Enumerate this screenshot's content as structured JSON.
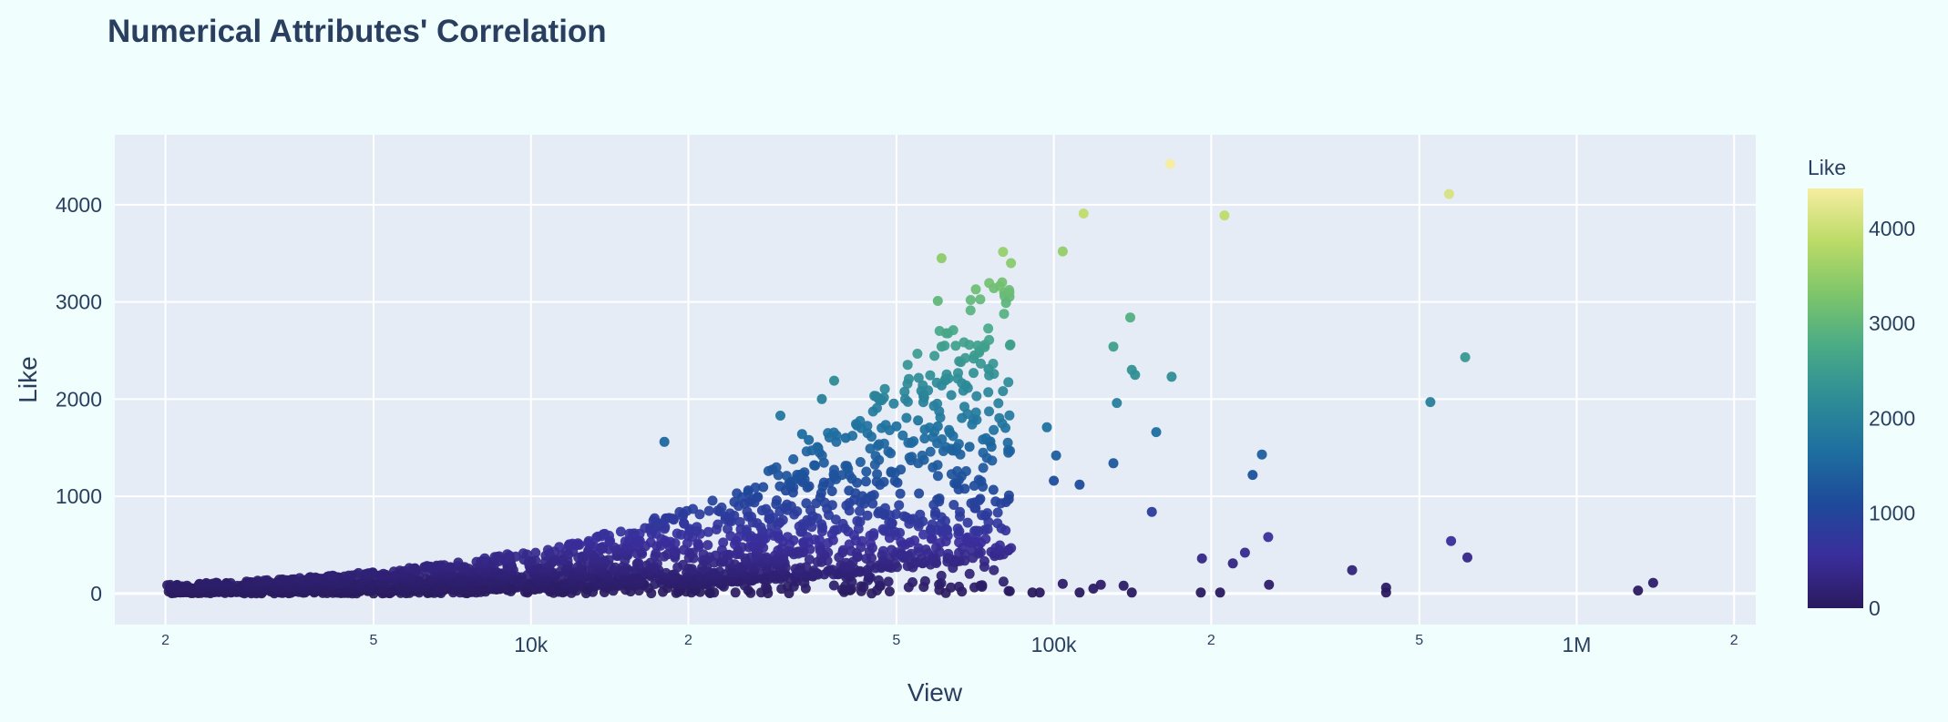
{
  "chart_data": {
    "type": "scatter",
    "title": "Numerical Attributes' Correlation",
    "xlabel": "View",
    "ylabel": "Like",
    "x_scale": "log",
    "xlim": [
      1600,
      2200000
    ],
    "ylim": [
      -320,
      4720
    ],
    "x_major_ticks": [
      {
        "value": 10000,
        "label": "10k"
      },
      {
        "value": 100000,
        "label": "100k"
      },
      {
        "value": 1000000,
        "label": "1M"
      }
    ],
    "x_minor_ticks": [
      {
        "value": 2000,
        "label": "2"
      },
      {
        "value": 5000,
        "label": "5"
      },
      {
        "value": 20000,
        "label": "2"
      },
      {
        "value": 50000,
        "label": "5"
      },
      {
        "value": 200000,
        "label": "2"
      },
      {
        "value": 500000,
        "label": "5"
      },
      {
        "value": 2000000,
        "label": "2"
      }
    ],
    "y_ticks": [
      {
        "value": 0,
        "label": "0"
      },
      {
        "value": 1000,
        "label": "1000"
      },
      {
        "value": 2000,
        "label": "2000"
      },
      {
        "value": 3000,
        "label": "3000"
      },
      {
        "value": 4000,
        "label": "4000"
      }
    ],
    "grid": true,
    "colorbar": {
      "title": "Like",
      "min": 0,
      "max": 4420,
      "colorscale": [
        "#2a1a5e",
        "#3a2e9c",
        "#1e4a9a",
        "#1e6fa0",
        "#2e8d96",
        "#4aab86",
        "#7ec66a",
        "#bcdb68",
        "#f6eda0"
      ],
      "ticks": [
        {
          "value": 0,
          "label": "0"
        },
        {
          "value": 1000,
          "label": "1000"
        },
        {
          "value": 2000,
          "label": "2000"
        },
        {
          "value": 3000,
          "label": "3000"
        },
        {
          "value": 4000,
          "label": "4000"
        }
      ]
    },
    "colors": {
      "page_background": "#f0fffe",
      "plot_background": "#e5ecf6",
      "grid": "#ffffff",
      "text": "#2a3f5f"
    },
    "notable_points": [
      [
        167000,
        4420
      ],
      [
        570000,
        4110
      ],
      [
        114000,
        3910
      ],
      [
        212000,
        3890
      ],
      [
        104000,
        3520
      ],
      [
        61000,
        3450
      ],
      [
        60000,
        3010
      ],
      [
        81000,
        2990
      ],
      [
        61000,
        2540
      ],
      [
        130000,
        2540
      ],
      [
        140000,
        2840
      ],
      [
        612000,
        2430
      ],
      [
        75000,
        2310
      ],
      [
        141000,
        2300
      ],
      [
        143000,
        2250
      ],
      [
        168000,
        2230
      ],
      [
        61000,
        2140
      ],
      [
        38000,
        2190
      ],
      [
        36000,
        2000
      ],
      [
        132000,
        1960
      ],
      [
        525000,
        1970
      ],
      [
        97000,
        1710
      ],
      [
        157000,
        1660
      ],
      [
        101000,
        1420
      ],
      [
        100000,
        1160
      ],
      [
        112000,
        1120
      ],
      [
        130000,
        1340
      ],
      [
        250000,
        1430
      ],
      [
        240000,
        1220
      ],
      [
        154000,
        840
      ],
      [
        64000,
        1470
      ],
      [
        69000,
        1510
      ],
      [
        76000,
        1510
      ],
      [
        60000,
        1720
      ],
      [
        55000,
        1780
      ],
      [
        50000,
        1720
      ],
      [
        30000,
        1830
      ],
      [
        18000,
        1560
      ],
      [
        33000,
        1640
      ],
      [
        34000,
        1580
      ],
      [
        40000,
        1600
      ],
      [
        82000,
        970
      ],
      [
        81000,
        940
      ],
      [
        575000,
        540
      ],
      [
        618000,
        370
      ],
      [
        257000,
        580
      ],
      [
        232000,
        420
      ],
      [
        192000,
        360
      ],
      [
        220000,
        310
      ],
      [
        1400000,
        110
      ],
      [
        1310000,
        30
      ],
      [
        372000,
        240
      ],
      [
        432000,
        60
      ],
      [
        432000,
        10
      ],
      [
        258000,
        90
      ],
      [
        191000,
        10
      ],
      [
        208000,
        10
      ],
      [
        104000,
        100
      ],
      [
        112000,
        10
      ],
      [
        119000,
        50
      ],
      [
        123000,
        90
      ],
      [
        136000,
        80
      ],
      [
        141000,
        10
      ],
      [
        91000,
        10
      ],
      [
        94000,
        10
      ]
    ],
    "bulk_region": {
      "description_free": true,
      "x_range": [
        2000,
        83000
      ],
      "like_per_view_ratio": [
        0.005,
        0.045
      ],
      "point_count": 2200
    }
  }
}
